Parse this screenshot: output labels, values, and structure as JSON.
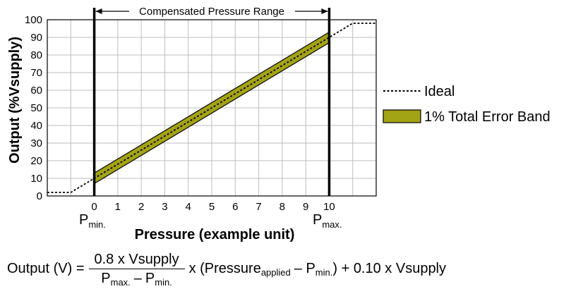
{
  "chart_data": {
    "type": "line",
    "xlabel": "Pressure (example unit)",
    "ylabel": "Output (%Vsupply)",
    "xlim": [
      -2,
      12
    ],
    "ylim": [
      0,
      100
    ],
    "x_ticks": [
      "0",
      "1",
      "2",
      "3",
      "4",
      "5",
      "6",
      "7",
      "8",
      "9",
      "10"
    ],
    "y_ticks": [
      "0",
      "10",
      "20",
      "30",
      "40",
      "50",
      "60",
      "70",
      "80",
      "90",
      "100"
    ],
    "grid": true,
    "range_label": "Compensated Pressure Range",
    "compensated_range": [
      0,
      10
    ],
    "p_min_label": {
      "main": "P",
      "sub": "min."
    },
    "p_max_label": {
      "main": "P",
      "sub": "max."
    },
    "legend_position": "right",
    "series": [
      {
        "name": "Ideal",
        "style": "dashed",
        "color": "#000000",
        "points": [
          [
            -2,
            2
          ],
          [
            -1,
            2
          ],
          [
            0,
            10
          ],
          [
            10,
            90
          ],
          [
            11,
            98
          ],
          [
            12,
            98
          ]
        ]
      },
      {
        "name": "1% Total Error Band",
        "style": "band",
        "color": "#a3a316",
        "x": [
          0,
          10
        ],
        "center": [
          10,
          90
        ],
        "half_width": 3
      }
    ],
    "vertical_markers": [
      0,
      10
    ]
  },
  "formula": {
    "lhs": "Output (V) =",
    "numerator": "0.8 x Vsupply",
    "den_p": "P",
    "den_max_sub": "max.",
    "den_minus": "–",
    "den_min_sub": "min.",
    "mid_text": "x (Pressure",
    "applied_sub": "applied",
    "mid_minus": "– P",
    "mid_min_sub": "min.",
    "tail": ") + 0.10 x Vsupply"
  }
}
